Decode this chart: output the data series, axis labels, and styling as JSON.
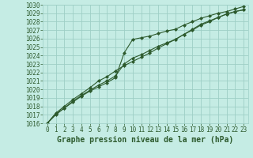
{
  "xlabel": "Graphe pression niveau de la mer (hPa)",
  "xlim": [
    -0.5,
    23.5
  ],
  "ylim": [
    1016,
    1030
  ],
  "yticks": [
    1016,
    1017,
    1018,
    1019,
    1020,
    1021,
    1022,
    1023,
    1024,
    1025,
    1026,
    1027,
    1028,
    1029,
    1030
  ],
  "xticks": [
    0,
    1,
    2,
    3,
    4,
    5,
    6,
    7,
    8,
    9,
    10,
    11,
    12,
    13,
    14,
    15,
    16,
    17,
    18,
    19,
    20,
    21,
    22,
    23
  ],
  "background_color": "#c5ece4",
  "grid_color": "#9ecfc6",
  "line_color": "#2d5a2d",
  "line1_y": [
    1016.0,
    1017.1,
    1017.8,
    1018.5,
    1019.2,
    1019.8,
    1020.3,
    1020.8,
    1021.4,
    1024.3,
    1025.9,
    1026.1,
    1026.3,
    1026.6,
    1026.9,
    1027.1,
    1027.6,
    1028.0,
    1028.4,
    1028.7,
    1029.0,
    1029.2,
    1029.5,
    1029.8
  ],
  "line2_y": [
    1016.0,
    1017.0,
    1017.8,
    1018.6,
    1019.3,
    1019.9,
    1020.5,
    1021.0,
    1021.6,
    1023.0,
    1023.7,
    1024.1,
    1024.6,
    1025.1,
    1025.5,
    1025.9,
    1026.5,
    1027.0,
    1027.6,
    1028.0,
    1028.5,
    1028.9,
    1029.2,
    1029.4
  ],
  "line3_y": [
    1016.0,
    1017.2,
    1018.0,
    1018.8,
    1019.5,
    1020.2,
    1021.0,
    1021.5,
    1022.2,
    1022.8,
    1023.3,
    1023.8,
    1024.3,
    1024.9,
    1025.4,
    1025.9,
    1026.5,
    1027.1,
    1027.7,
    1028.1,
    1028.5,
    1028.9,
    1029.2,
    1029.4
  ],
  "marker": "D",
  "marker_size": 2,
  "linewidth": 0.8,
  "tick_fontsize": 5.5,
  "label_fontsize": 7
}
